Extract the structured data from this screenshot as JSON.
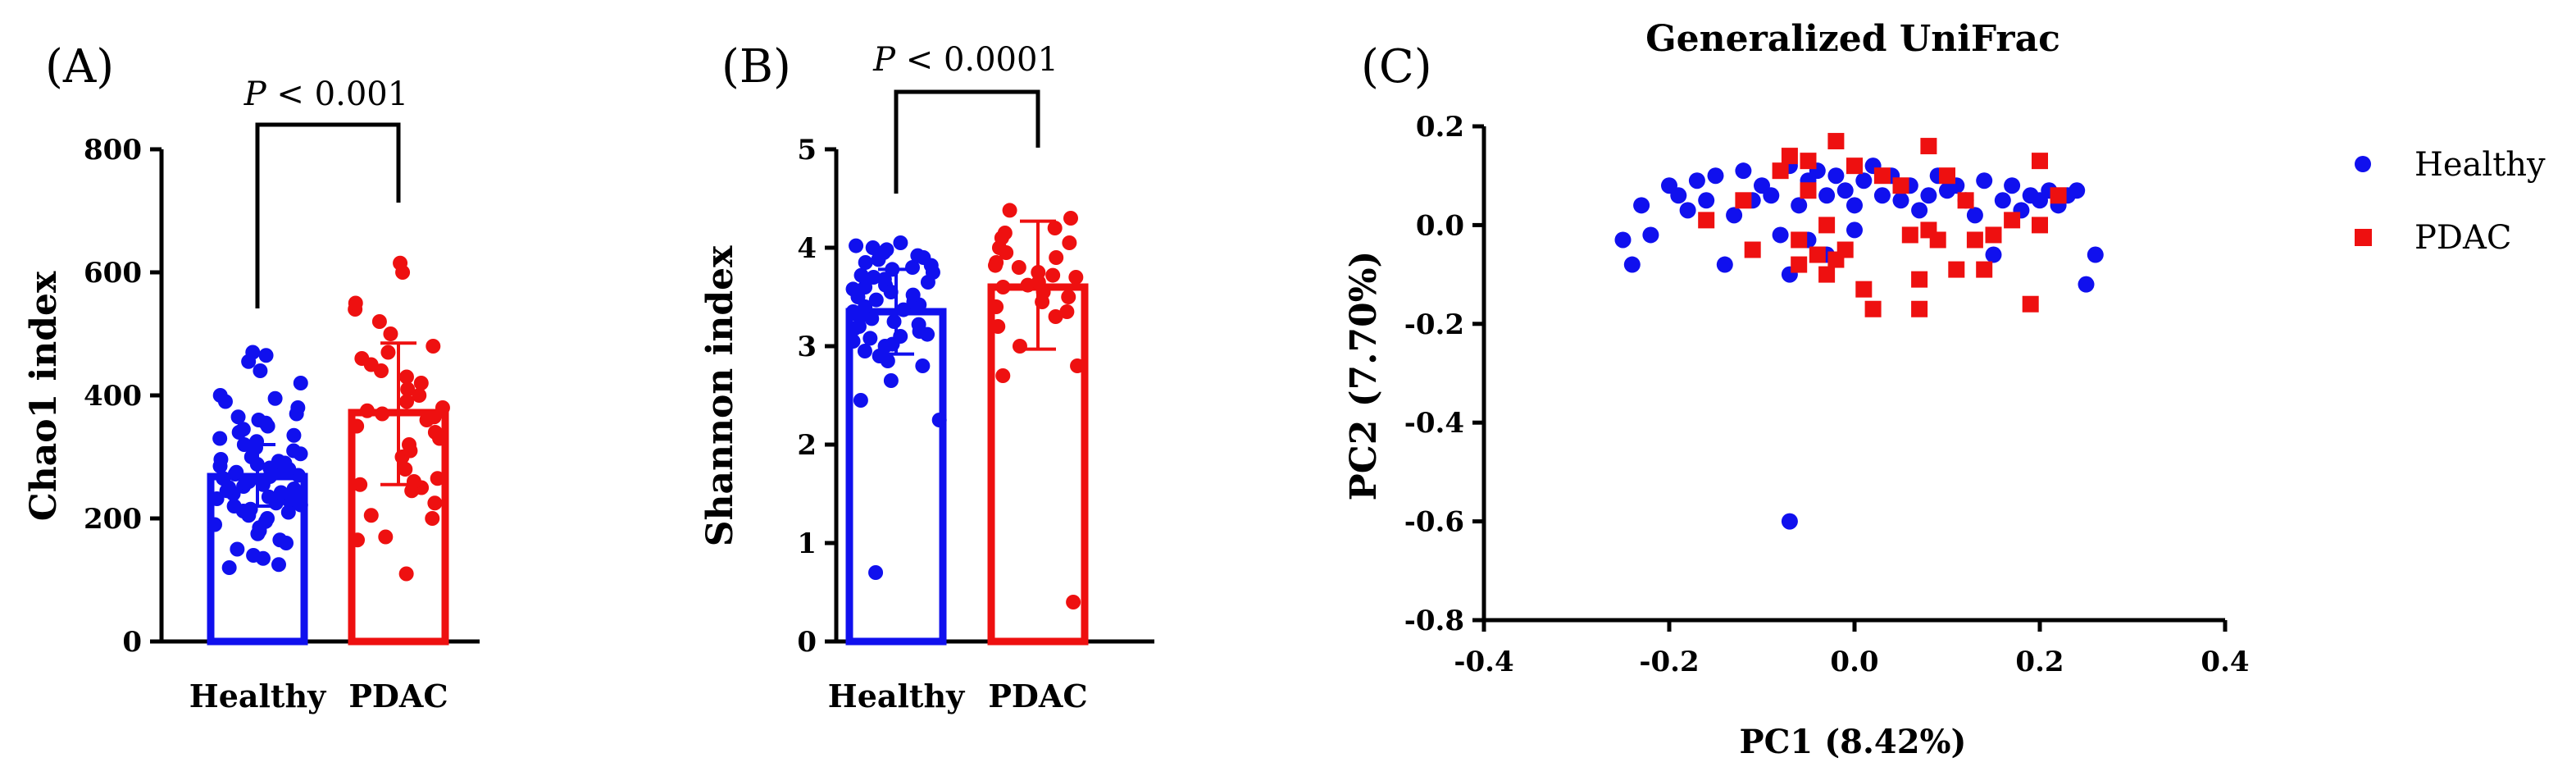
{
  "colors": {
    "healthy": "#1010ee",
    "pdac": "#ee1010",
    "axis": "#000000"
  },
  "chart_data": [
    {
      "panel": "(A)",
      "type": "bar",
      "ylabel": "Chao1 index",
      "categories": [
        "Healthy",
        "PDAC"
      ],
      "ylim": [
        0,
        800
      ],
      "yticks": [
        0,
        200,
        400,
        600,
        800
      ],
      "series": [
        {
          "name": "Healthy",
          "value": 268,
          "error": [
            220,
            320
          ],
          "points": [
            120,
            125,
            135,
            140,
            150,
            160,
            165,
            175,
            180,
            185,
            190,
            195,
            200,
            205,
            210,
            212,
            215,
            220,
            222,
            225,
            228,
            230,
            232,
            235,
            238,
            240,
            242,
            245,
            248,
            250,
            252,
            255,
            258,
            260,
            262,
            265,
            268,
            270,
            272,
            275,
            278,
            280,
            282,
            285,
            288,
            290,
            293,
            296,
            300,
            305,
            310,
            315,
            320,
            325,
            330,
            335,
            340,
            345,
            350,
            355,
            360,
            365,
            370,
            380,
            390,
            395,
            400,
            420,
            440,
            455,
            465,
            470
          ]
        },
        {
          "name": "PDAC",
          "value": 372,
          "error": [
            255,
            485
          ],
          "points": [
            110,
            165,
            170,
            200,
            205,
            225,
            245,
            250,
            255,
            260,
            265,
            280,
            300,
            310,
            320,
            330,
            340,
            350,
            360,
            365,
            370,
            375,
            380,
            390,
            400,
            410,
            420,
            430,
            440,
            450,
            460,
            470,
            480,
            500,
            520,
            540,
            550,
            600,
            615
          ]
        }
      ],
      "annotation": {
        "prefix": "P",
        "text": " < 0.001"
      }
    },
    {
      "panel": "(B)",
      "type": "bar",
      "ylabel": "Shannon index",
      "categories": [
        "Healthy",
        "PDAC"
      ],
      "ylim": [
        0,
        5
      ],
      "yticks": [
        0,
        1,
        2,
        3,
        4,
        5
      ],
      "series": [
        {
          "name": "Healthy",
          "value": 3.35,
          "error": [
            2.92,
            3.78
          ],
          "points": [
            0.7,
            2.25,
            2.45,
            2.65,
            2.8,
            2.85,
            2.9,
            2.95,
            3.0,
            3.02,
            3.05,
            3.08,
            3.1,
            3.12,
            3.15,
            3.18,
            3.2,
            3.22,
            3.25,
            3.28,
            3.3,
            3.32,
            3.35,
            3.37,
            3.4,
            3.42,
            3.45,
            3.47,
            3.5,
            3.52,
            3.55,
            3.58,
            3.6,
            3.62,
            3.65,
            3.68,
            3.7,
            3.72,
            3.75,
            3.78,
            3.8,
            3.82,
            3.85,
            3.88,
            3.9,
            3.92,
            3.95,
            3.98,
            4.0,
            4.02,
            4.05
          ]
        },
        {
          "name": "PDAC",
          "value": 3.6,
          "error": [
            2.97,
            4.27
          ],
          "points": [
            0.4,
            2.7,
            2.8,
            3.0,
            3.2,
            3.3,
            3.35,
            3.4,
            3.45,
            3.5,
            3.55,
            3.6,
            3.62,
            3.65,
            3.7,
            3.72,
            3.75,
            3.8,
            3.82,
            3.85,
            3.9,
            3.95,
            4.0,
            4.05,
            4.1,
            4.15,
            4.2,
            4.3,
            4.38
          ]
        }
      ],
      "annotation": {
        "prefix": "P",
        "text": " < 0.0001"
      }
    },
    {
      "panel": "(C)",
      "type": "scatter",
      "title": "Generalized UniFrac",
      "xlabel": "PC1 (8.42%)",
      "ylabel": "PC2 (7.70%)",
      "xlim": [
        -0.4,
        0.4
      ],
      "ylim": [
        -0.8,
        0.2
      ],
      "xticks": [
        -0.4,
        -0.2,
        0.0,
        0.2,
        0.4
      ],
      "yticks": [
        0.2,
        0.0,
        -0.2,
        -0.4,
        -0.6,
        -0.8
      ],
      "tick_labels_x": [
        "-0.4",
        "-0.2",
        "0.0",
        "0.2",
        "0.4"
      ],
      "tick_labels_y": [
        "0.2",
        "0.0",
        "-0.2",
        "-0.4",
        "-0.6",
        "-0.8"
      ],
      "legend_position": "right",
      "series": [
        {
          "name": "Healthy",
          "marker": "circle",
          "points": [
            [
              -0.25,
              -0.03
            ],
            [
              -0.24,
              -0.08
            ],
            [
              -0.23,
              0.04
            ],
            [
              -0.22,
              -0.02
            ],
            [
              -0.2,
              0.08
            ],
            [
              -0.19,
              0.06
            ],
            [
              -0.18,
              0.03
            ],
            [
              -0.17,
              0.09
            ],
            [
              -0.16,
              0.05
            ],
            [
              -0.15,
              0.1
            ],
            [
              -0.14,
              -0.08
            ],
            [
              -0.13,
              0.02
            ],
            [
              -0.12,
              0.11
            ],
            [
              -0.11,
              0.05
            ],
            [
              -0.1,
              0.08
            ],
            [
              -0.09,
              0.06
            ],
            [
              -0.08,
              -0.02
            ],
            [
              -0.07,
              0.12
            ],
            [
              -0.07,
              -0.1
            ],
            [
              -0.06,
              0.04
            ],
            [
              -0.05,
              0.09
            ],
            [
              -0.05,
              -0.03
            ],
            [
              -0.04,
              0.11
            ],
            [
              -0.03,
              0.06
            ],
            [
              -0.03,
              -0.06
            ],
            [
              -0.02,
              0.1
            ],
            [
              -0.01,
              0.07
            ],
            [
              0.0,
              0.04
            ],
            [
              0.0,
              -0.01
            ],
            [
              0.01,
              0.09
            ],
            [
              0.02,
              0.12
            ],
            [
              0.03,
              0.06
            ],
            [
              0.04,
              0.1
            ],
            [
              0.05,
              0.05
            ],
            [
              0.06,
              0.08
            ],
            [
              0.07,
              0.03
            ],
            [
              0.08,
              0.06
            ],
            [
              0.09,
              0.1
            ],
            [
              0.1,
              0.07
            ],
            [
              0.11,
              0.08
            ],
            [
              0.12,
              0.05
            ],
            [
              0.13,
              0.02
            ],
            [
              0.14,
              0.09
            ],
            [
              0.15,
              -0.06
            ],
            [
              0.16,
              0.05
            ],
            [
              0.17,
              0.08
            ],
            [
              0.18,
              0.03
            ],
            [
              0.19,
              0.06
            ],
            [
              0.2,
              0.05
            ],
            [
              0.21,
              0.07
            ],
            [
              0.22,
              0.04
            ],
            [
              0.23,
              0.06
            ],
            [
              0.24,
              0.07
            ],
            [
              0.25,
              -0.12
            ],
            [
              0.26,
              -0.06
            ],
            [
              -0.07,
              -0.6
            ]
          ]
        },
        {
          "name": "PDAC",
          "marker": "square",
          "points": [
            [
              -0.16,
              0.01
            ],
            [
              -0.12,
              0.05
            ],
            [
              -0.11,
              -0.05
            ],
            [
              -0.08,
              0.11
            ],
            [
              -0.07,
              0.14
            ],
            [
              -0.06,
              -0.03
            ],
            [
              -0.06,
              -0.08
            ],
            [
              -0.05,
              0.13
            ],
            [
              -0.05,
              0.07
            ],
            [
              -0.04,
              -0.06
            ],
            [
              -0.03,
              0.0
            ],
            [
              -0.03,
              -0.1
            ],
            [
              -0.02,
              0.17
            ],
            [
              -0.02,
              -0.07
            ],
            [
              -0.01,
              -0.05
            ],
            [
              0.0,
              0.12
            ],
            [
              0.01,
              -0.13
            ],
            [
              0.02,
              -0.17
            ],
            [
              0.03,
              0.1
            ],
            [
              0.05,
              0.08
            ],
            [
              0.06,
              -0.02
            ],
            [
              0.07,
              -0.11
            ],
            [
              0.07,
              -0.17
            ],
            [
              0.08,
              0.16
            ],
            [
              0.08,
              -0.01
            ],
            [
              0.09,
              -0.03
            ],
            [
              0.1,
              0.1
            ],
            [
              0.11,
              -0.09
            ],
            [
              0.12,
              0.05
            ],
            [
              0.13,
              -0.03
            ],
            [
              0.14,
              -0.09
            ],
            [
              0.15,
              -0.02
            ],
            [
              0.17,
              0.01
            ],
            [
              0.19,
              -0.16
            ],
            [
              0.2,
              0.13
            ],
            [
              0.22,
              0.06
            ],
            [
              0.2,
              0.0
            ]
          ]
        }
      ]
    }
  ]
}
